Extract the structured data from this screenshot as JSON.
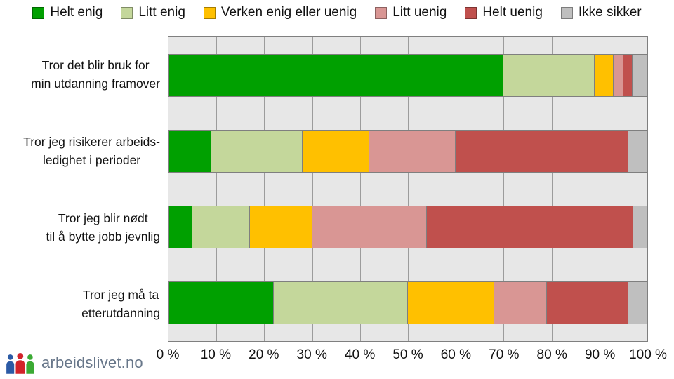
{
  "chart_data": {
    "type": "bar",
    "orientation": "horizontal",
    "stacked": true,
    "unit": "%",
    "title": "",
    "xlabel": "",
    "ylabel": "",
    "xlim": [
      0,
      100
    ],
    "grid": true,
    "legend_position": "top",
    "categories": [
      [
        "Tror det blir bruk for",
        "min utdanning framover"
      ],
      [
        "Tror jeg risikerer arbeids-",
        "ledighet i perioder"
      ],
      [
        "Tror jeg blir nødt",
        "til å bytte jobb jevnlig"
      ],
      [
        "Tror jeg må ta",
        "etterutdanning"
      ]
    ],
    "series": [
      {
        "name": "Helt enig",
        "color": "#00A000",
        "values": [
          70,
          9,
          5,
          22
        ]
      },
      {
        "name": "Litt enig",
        "color": "#C4D79B",
        "values": [
          19,
          19,
          12,
          28
        ]
      },
      {
        "name": "Verken enig eller uenig",
        "color": "#FFC000",
        "values": [
          4,
          14,
          13,
          18
        ]
      },
      {
        "name": "Litt uenig",
        "color": "#D99694",
        "values": [
          2,
          18,
          24,
          11
        ]
      },
      {
        "name": "Helt uenig",
        "color": "#C0504D",
        "values": [
          2,
          36,
          43,
          17
        ]
      },
      {
        "name": "Ikke sikker",
        "color": "#BFBFBF",
        "values": [
          3,
          4,
          3,
          4
        ]
      }
    ],
    "x_ticks": [
      "0 %",
      "10 %",
      "20 %",
      "30 %",
      "40 %",
      "50 %",
      "60 %",
      "70 %",
      "80 %",
      "90 %",
      "100 %"
    ]
  },
  "footer": {
    "logo_text": "arbeidslivet.no"
  },
  "colors": {
    "plot_bg": "#E7E7E7",
    "gridline": "#9C9C9C",
    "plot_border": "#7F7F7F",
    "logo_text": "#68778A",
    "logo_people": [
      "#2B5AA5",
      "#D2232A",
      "#3BAA34"
    ]
  }
}
